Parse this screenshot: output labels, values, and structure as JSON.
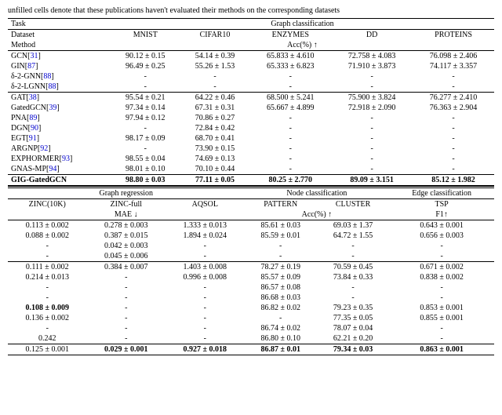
{
  "caption": "unfilled cells denote that these publications haven't evaluated their methods on the corresponding datasets",
  "top": {
    "task_label": "Task",
    "task_value": "Graph classification",
    "dataset_label": "Dataset",
    "method_label": "Method",
    "metric": "Acc(%) ↑",
    "datasets": [
      "MNIST",
      "CIFAR10",
      "ENZYMES",
      "DD",
      "PROTEINS"
    ],
    "methods": [
      {
        "name": "GCN",
        "ref": "31",
        "mnist": "90.12 ± 0.15",
        "cifar": "54.14 ± 0.39",
        "enz": "65.833 ± 4.610",
        "dd": "72.758 ± 4.083",
        "prot": "76.098 ± 2.406"
      },
      {
        "name": "GIN",
        "ref": "87",
        "mnist": "96.49 ± 0.25",
        "cifar": "55.26 ± 1.53",
        "enz": "65.333 ± 6.823",
        "dd": "71.910 ± 3.873",
        "prot": "74.117 ± 3.357"
      },
      {
        "name": "δ-2-GNN",
        "ref": "88",
        "mnist": "-",
        "cifar": "-",
        "enz": "-",
        "dd": "-",
        "prot": "-"
      },
      {
        "name": "δ-2-LGNN",
        "ref": "88",
        "mnist": "-",
        "cifar": "-",
        "enz": "-",
        "dd": "-",
        "prot": "-",
        "rule": "bot"
      },
      {
        "name": "GAT",
        "ref": "38",
        "mnist": "95.54 ± 0.21",
        "cifar": "64.22 ± 0.46",
        "enz": "68.500 ± 5.241",
        "dd": "75.900 ± 3.824",
        "prot": "76.277 ± 2.410"
      },
      {
        "name": "GatedGCN",
        "ref": "39",
        "mnist": "97.34 ± 0.14",
        "cifar": "67.31 ± 0.31",
        "enz": "65.667 ± 4.899",
        "dd": "72.918 ± 2.090",
        "prot": "76.363 ± 2.904"
      },
      {
        "name": "PNA",
        "ref": "89",
        "mnist": "97.94 ± 0.12",
        "cifar": "70.86 ± 0.27",
        "enz": "-",
        "dd": "-",
        "prot": "-"
      },
      {
        "name": "DGN",
        "ref": "90",
        "mnist": "-",
        "cifar": "72.84 ± 0.42",
        "enz": "-",
        "dd": "-",
        "prot": "-"
      },
      {
        "name": "EGT",
        "ref": "91",
        "mnist": "98.17 ± 0.09",
        "cifar": "68.70 ± 0.41",
        "enz": "-",
        "dd": "-",
        "prot": "-"
      },
      {
        "name": "ARGNP",
        "ref": "92",
        "mnist": "-",
        "cifar": "73.90 ± 0.15",
        "enz": "-",
        "dd": "-",
        "prot": "-"
      },
      {
        "name": "EXPHORMER",
        "ref": "93",
        "mnist": "98.55 ± 0.04",
        "cifar": "74.69 ± 0.13",
        "enz": "-",
        "dd": "-",
        "prot": "-"
      },
      {
        "name": "GNAS-MP",
        "ref": "94",
        "mnist": "98.01 ± 0.10",
        "cifar": "70.10 ± 0.44",
        "enz": "-",
        "dd": "-",
        "prot": "-",
        "rule": "bot"
      },
      {
        "name": "GIG-GatedGCN",
        "ref": "",
        "mnist": "98.80 ± 0.03",
        "cifar": "77.11 ± 0.05",
        "enz": "80.25 ± 2.770",
        "dd": "89.09 ± 3.151",
        "prot": "85.12 ± 1.982",
        "bold": true
      }
    ]
  },
  "bottom": {
    "headers": {
      "greg": "Graph regression",
      "ncls": "Node classification",
      "ecls": "Edge classification",
      "zinc10k": "ZINC(10K)",
      "zincfull": "ZINC-full",
      "aqsol": "AQSOL",
      "pattern": "PATTERN",
      "cluster": "CLUSTER",
      "tsp": "TSP",
      "mae": "MAE ↓",
      "acc": "Acc(%) ↑",
      "f1": "F1↑"
    },
    "rows": [
      {
        "z10": "0.113 ± 0.002",
        "zf": "0.278 ± 0.003",
        "aq": "1.333 ± 0.013",
        "pat": "85.61 ± 0.03",
        "clu": "69.03 ± 1.37",
        "tsp": "0.643 ± 0.001"
      },
      {
        "z10": "0.088 ± 0.002",
        "zf": "0.387 ± 0.015",
        "aq": "1.894 ± 0.024",
        "pat": "85.59 ± 0.01",
        "clu": "64.72 ± 1.55",
        "tsp": "0.656 ± 0.003"
      },
      {
        "z10": "-",
        "zf": "0.042 ± 0.003",
        "aq": "-",
        "pat": "-",
        "clu": "-",
        "tsp": "-"
      },
      {
        "z10": "-",
        "zf": "0.045 ± 0.006",
        "aq": "-",
        "pat": "-",
        "clu": "-",
        "tsp": "-",
        "rule": "bot"
      },
      {
        "z10": "0.111 ± 0.002",
        "zf": "0.384 ± 0.007",
        "aq": "1.403 ± 0.008",
        "pat": "78.27 ± 0.19",
        "clu": "70.59 ± 0.45",
        "tsp": "0.671 ± 0.002"
      },
      {
        "z10": "0.214 ± 0.013",
        "zf": "-",
        "aq": "0.996 ± 0.008",
        "pat": "85.57 ± 0.09",
        "clu": "73.84 ± 0.33",
        "tsp": "0.838 ± 0.002"
      },
      {
        "z10": "-",
        "zf": "-",
        "aq": "-",
        "pat": "86.57 ± 0.08",
        "clu": "-",
        "tsp": "-"
      },
      {
        "z10": "-",
        "zf": "-",
        "aq": "-",
        "pat": "86.68 ± 0.03",
        "clu": "-",
        "tsp": "-"
      },
      {
        "z10": "0.108 ± 0.009",
        "zf": "-",
        "aq": "-",
        "pat": "86.82 ± 0.02",
        "clu": "79.23 ± 0.35",
        "tsp": "0.853 ± 0.001",
        "bold_z10": true
      },
      {
        "z10": "0.136 ± 0.002",
        "zf": "-",
        "aq": "-",
        "pat": "-",
        "clu": "77.35 ± 0.05",
        "tsp": "0.855 ± 0.001"
      },
      {
        "z10": "-",
        "zf": "-",
        "aq": "-",
        "pat": "86.74 ± 0.02",
        "clu": "78.07 ± 0.04",
        "tsp": "-"
      },
      {
        "z10": "0.242",
        "zf": "-",
        "aq": "-",
        "pat": "86.80 ± 0.10",
        "clu": "62.21 ± 0.20",
        "tsp": "-",
        "rule": "bot"
      },
      {
        "z10": "0.125 ± 0.001",
        "zf": "0.029 ± 0.001",
        "aq": "0.927 ± 0.018",
        "pat": "86.87 ± 0.01",
        "clu": "79.34 ± 0.03",
        "tsp": "0.863 ± 0.001",
        "bold_rest": true
      }
    ]
  }
}
